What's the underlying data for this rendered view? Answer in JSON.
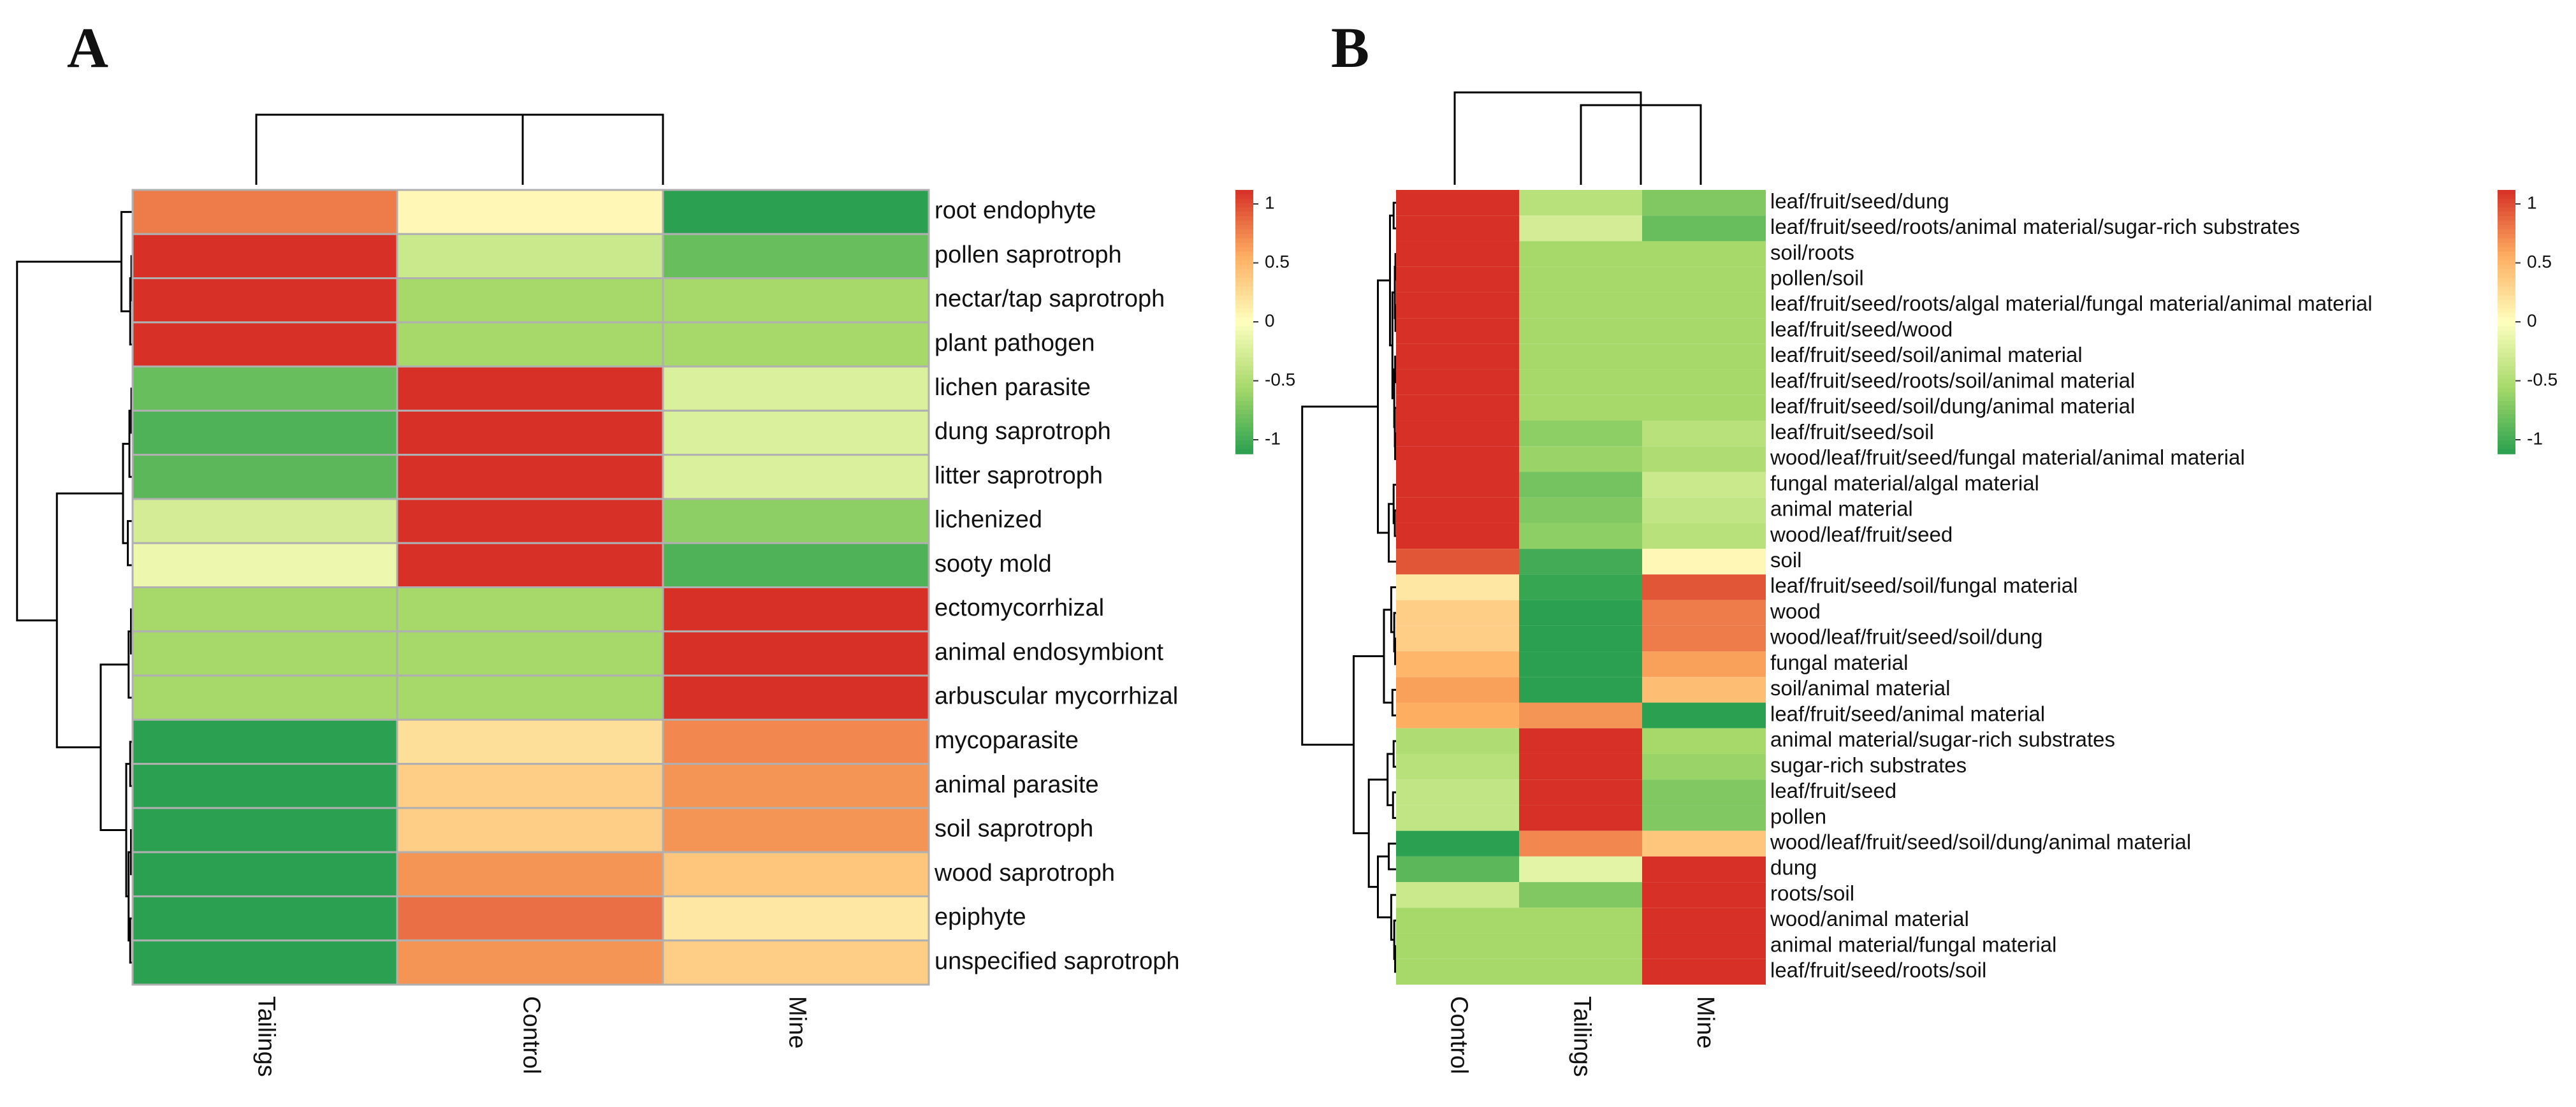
{
  "colors": {
    "low": "#2aa050",
    "mid_low": "#a6d96a",
    "mid": "#ffffbf",
    "mid_high": "#fdae61",
    "high": "#d73027",
    "grid_a": "#b0b0b0",
    "dendrogram": "#000000"
  },
  "chart_data": [
    {
      "type": "heatmap",
      "panel_label": "A",
      "columns": [
        "Tailings",
        "Control",
        "Mine"
      ],
      "rows": [
        "root endophyte",
        "pollen saprotroph",
        "nectar/tap saprotroph",
        "plant pathogen",
        "lichen parasite",
        "dung saprotroph",
        "litter saprotroph",
        "lichenized",
        "sooty mold",
        "ectomycorrhizal",
        "animal endosymbiont",
        "arbuscular mycorrhizal",
        "mycoparasite",
        "animal parasite",
        "soil saprotroph",
        "wood saprotroph",
        "epiphyte",
        "unspecified saprotroph"
      ],
      "values": [
        [
          0.7,
          0.05,
          -1.0
        ],
        [
          1.0,
          -0.3,
          -0.75
        ],
        [
          1.0,
          -0.5,
          -0.5
        ],
        [
          1.0,
          -0.5,
          -0.5
        ],
        [
          -0.75,
          1.0,
          -0.2
        ],
        [
          -0.85,
          1.0,
          -0.2
        ],
        [
          -0.8,
          1.0,
          -0.2
        ],
        [
          -0.25,
          1.0,
          -0.6
        ],
        [
          -0.1,
          1.0,
          -0.85
        ],
        [
          -0.5,
          -0.5,
          1.0
        ],
        [
          -0.5,
          -0.5,
          1.0
        ],
        [
          -0.5,
          -0.5,
          1.0
        ],
        [
          -1.0,
          0.2,
          0.65
        ],
        [
          -1.0,
          0.3,
          0.6
        ],
        [
          -1.0,
          0.3,
          0.6
        ],
        [
          -1.0,
          0.6,
          0.35
        ],
        [
          -1.0,
          0.75,
          0.15
        ],
        [
          -1.0,
          0.6,
          0.3
        ]
      ],
      "color_scale": {
        "min": -1,
        "max": 1,
        "ticks": [
          "1",
          "0.5",
          "0",
          "-0.5",
          "-1"
        ]
      }
    },
    {
      "type": "heatmap",
      "panel_label": "B",
      "columns": [
        "Control",
        "Tailings",
        "Mine"
      ],
      "rows": [
        "leaf/fruit/seed/dung",
        "leaf/fruit/seed/roots/animal material/sugar-rich substrates",
        "soil/roots",
        "pollen/soil",
        "leaf/fruit/seed/roots/algal material/fungal material/animal material",
        "leaf/fruit/seed/wood",
        "leaf/fruit/seed/soil/animal material",
        "leaf/fruit/seed/roots/soil/animal material",
        "leaf/fruit/seed/soil/dung/animal material",
        "leaf/fruit/seed/soil",
        "wood/leaf/fruit/seed/fungal material/animal material",
        "fungal material/algal material",
        "animal material",
        "wood/leaf/fruit/seed",
        "soil",
        "leaf/fruit/seed/soil/fungal material",
        "wood",
        "wood/leaf/fruit/seed/soil/dung",
        "fungal material",
        "soil/animal material",
        "leaf/fruit/seed/animal material",
        "animal material/sugar-rich substrates",
        "sugar-rich substrates",
        "leaf/fruit/seed",
        "pollen",
        "wood/leaf/fruit/seed/soil/dung/animal material",
        "dung",
        "roots/soil",
        "wood/animal material",
        "animal material/fungal material",
        "leaf/fruit/seed/roots/soil"
      ],
      "values": [
        [
          1.0,
          -0.4,
          -0.65
        ],
        [
          1.0,
          -0.25,
          -0.75
        ],
        [
          1.0,
          -0.5,
          -0.5
        ],
        [
          1.0,
          -0.5,
          -0.5
        ],
        [
          1.0,
          -0.5,
          -0.5
        ],
        [
          1.0,
          -0.5,
          -0.5
        ],
        [
          1.0,
          -0.5,
          -0.5
        ],
        [
          1.0,
          -0.5,
          -0.5
        ],
        [
          1.0,
          -0.5,
          -0.5
        ],
        [
          1.0,
          -0.6,
          -0.4
        ],
        [
          1.0,
          -0.55,
          -0.45
        ],
        [
          1.0,
          -0.7,
          -0.3
        ],
        [
          1.0,
          -0.65,
          -0.35
        ],
        [
          1.0,
          -0.6,
          -0.4
        ],
        [
          0.85,
          -0.9,
          0.05
        ],
        [
          0.15,
          -0.95,
          0.85
        ],
        [
          0.3,
          -1.0,
          0.7
        ],
        [
          0.3,
          -1.0,
          0.7
        ],
        [
          0.45,
          -1.0,
          0.55
        ],
        [
          0.55,
          -1.0,
          0.4
        ],
        [
          0.5,
          0.6,
          -1.0
        ],
        [
          -0.45,
          1.0,
          -0.5
        ],
        [
          -0.4,
          1.0,
          -0.55
        ],
        [
          -0.35,
          1.0,
          -0.65
        ],
        [
          -0.35,
          1.0,
          -0.65
        ],
        [
          -1.0,
          0.65,
          0.35
        ],
        [
          -0.8,
          -0.15,
          1.0
        ],
        [
          -0.3,
          -0.65,
          1.0
        ],
        [
          -0.5,
          -0.5,
          1.0
        ],
        [
          -0.5,
          -0.5,
          1.0
        ],
        [
          -0.5,
          -0.5,
          1.0
        ]
      ],
      "color_scale": {
        "min": -1,
        "max": 1,
        "ticks": [
          "1",
          "0.5",
          "0",
          "-0.5",
          "-1"
        ]
      }
    }
  ]
}
